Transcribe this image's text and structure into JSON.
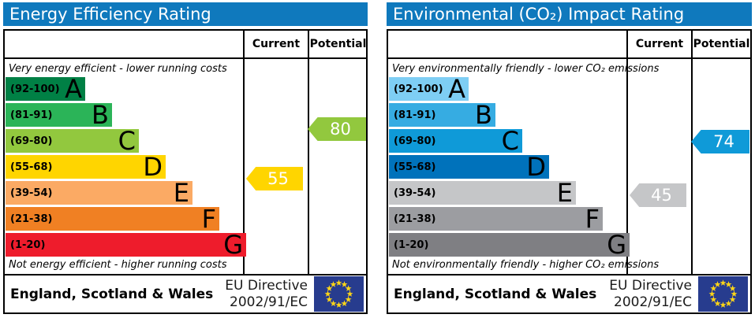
{
  "colors": {
    "title_bar": "#0f79bd",
    "eu_flag_blue": "#273c8e",
    "eu_star_yellow": "#ffd617",
    "border": "#000000"
  },
  "chart_data": [
    {
      "type": "bar",
      "title": "Energy Efficiency Rating",
      "categories": [
        "A (92-100)",
        "B (81-91)",
        "C (69-80)",
        "D (55-68)",
        "E (39-54)",
        "F (21-38)",
        "G (1-20)"
      ],
      "band_colors": [
        "#008045",
        "#2bb458",
        "#92c83e",
        "#ffd500",
        "#fbaa64",
        "#f08023",
        "#ee1c2c"
      ],
      "markers": {
        "current": 55,
        "potential": 80
      },
      "columns": [
        "Current",
        "Potential"
      ],
      "annotations": [
        "Very energy efficient - lower running costs",
        "Not energy efficient - higher running costs"
      ],
      "footer": "England, Scotland & Wales — EU Directive 2002/91/EC",
      "xlim": [
        1,
        100
      ],
      "grid": false
    },
    {
      "type": "bar",
      "title": "Environmental (CO₂) Impact Rating",
      "categories": [
        "A (92-100)",
        "B (81-91)",
        "C (69-80)",
        "D (55-68)",
        "E (39-54)",
        "F (21-38)",
        "G (1-20)"
      ],
      "band_colors": [
        "#7ecef4",
        "#36ace2",
        "#0f9ad8",
        "#0072bb",
        "#c5c6c8",
        "#9c9da1",
        "#7f7f83"
      ],
      "markers": {
        "current": 45,
        "potential": 74
      },
      "columns": [
        "Current",
        "Potential"
      ],
      "annotations": [
        "Very environmentally friendly - lower CO₂ emissions",
        "Not environmentally friendly - higher CO₂ emissions"
      ],
      "footer": "England, Scotland & Wales — EU Directive 2002/91/EC",
      "xlim": [
        1,
        100
      ],
      "grid": false
    }
  ],
  "panels": [
    {
      "title": "Energy Efficiency Rating",
      "columns": {
        "current": "Current",
        "potential": "Potential"
      },
      "top_note": "Very energy efficient - lower running costs",
      "bottom_note": "Not energy efficient - higher running costs",
      "bands": [
        {
          "label": "(92-100)",
          "letter": "A",
          "range": [
            92,
            100
          ],
          "color": "#008045"
        },
        {
          "label": "(81-91)",
          "letter": "B",
          "range": [
            81,
            91
          ],
          "color": "#2bb458"
        },
        {
          "label": "(69-80)",
          "letter": "C",
          "range": [
            69,
            80
          ],
          "color": "#92c83e"
        },
        {
          "label": "(55-68)",
          "letter": "D",
          "range": [
            55,
            68
          ],
          "color": "#ffd500"
        },
        {
          "label": "(39-54)",
          "letter": "E",
          "range": [
            39,
            54
          ],
          "color": "#fbaa64"
        },
        {
          "label": "(21-38)",
          "letter": "F",
          "range": [
            21,
            38
          ],
          "color": "#f08023"
        },
        {
          "label": "(1-20)",
          "letter": "G",
          "range": [
            1,
            20
          ],
          "color": "#ee1c2c"
        }
      ],
      "current": {
        "value": 55,
        "color": "#ffd500"
      },
      "potential": {
        "value": 80,
        "color": "#92c83e"
      },
      "footer": {
        "region": "England, Scotland & Wales",
        "directive": [
          "EU Directive",
          "2002/91/EC"
        ]
      }
    },
    {
      "title": "Environmental (CO₂) Impact Rating",
      "columns": {
        "current": "Current",
        "potential": "Potential"
      },
      "top_note": "Very environmentally friendly - lower CO₂ emissions",
      "bottom_note": "Not environmentally friendly - higher CO₂ emissions",
      "bands": [
        {
          "label": "(92-100)",
          "letter": "A",
          "range": [
            92,
            100
          ],
          "color": "#7ecef4"
        },
        {
          "label": "(81-91)",
          "letter": "B",
          "range": [
            81,
            91
          ],
          "color": "#36ace2"
        },
        {
          "label": "(69-80)",
          "letter": "C",
          "range": [
            69,
            80
          ],
          "color": "#0f9ad8"
        },
        {
          "label": "(55-68)",
          "letter": "D",
          "range": [
            55,
            68
          ],
          "color": "#0072bb"
        },
        {
          "label": "(39-54)",
          "letter": "E",
          "range": [
            39,
            54
          ],
          "color": "#c5c6c8"
        },
        {
          "label": "(21-38)",
          "letter": "F",
          "range": [
            21,
            38
          ],
          "color": "#9c9da1"
        },
        {
          "label": "(1-20)",
          "letter": "G",
          "range": [
            1,
            20
          ],
          "color": "#7f7f83"
        }
      ],
      "current": {
        "value": 45,
        "color": "#c5c6c8"
      },
      "potential": {
        "value": 74,
        "color": "#0f9ad8"
      },
      "footer": {
        "region": "England, Scotland & Wales",
        "directive": [
          "EU Directive",
          "2002/91/EC"
        ]
      }
    }
  ]
}
